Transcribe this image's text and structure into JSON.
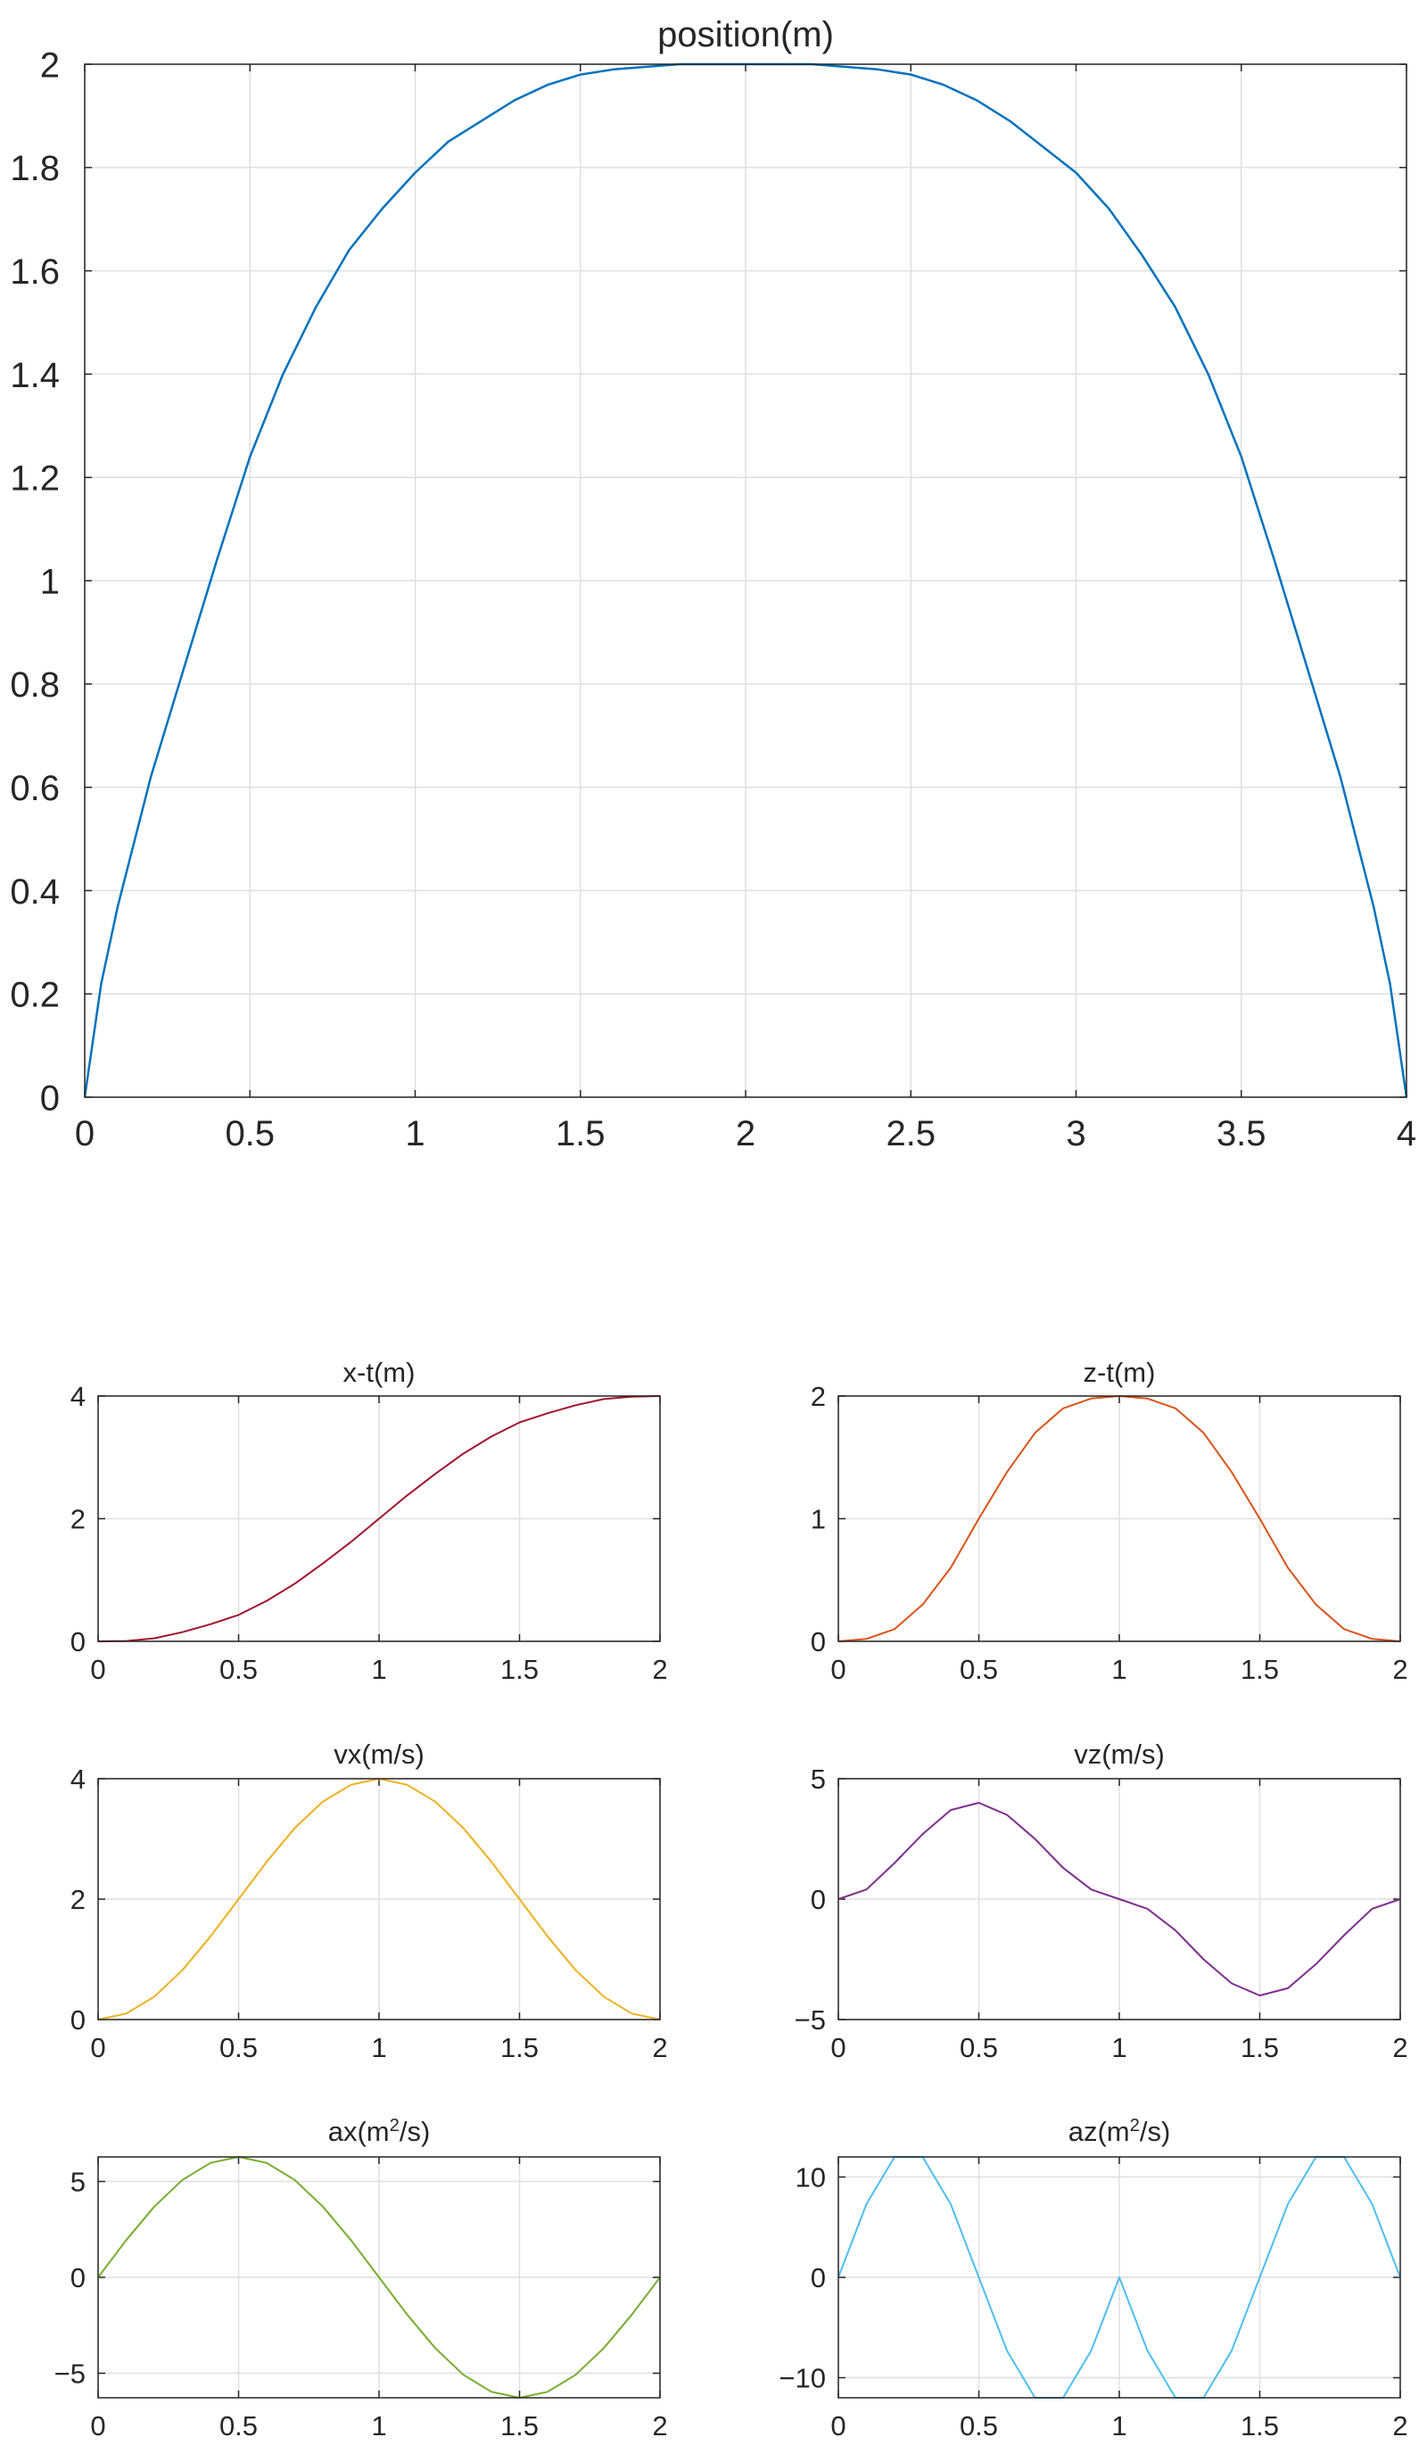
{
  "chart_data": [
    {
      "type": "line",
      "title": "position(m)",
      "xlim": [
        0,
        4
      ],
      "ylim": [
        0,
        2
      ],
      "xticks": [
        "0",
        "0.5",
        "1",
        "1.5",
        "2",
        "2.5",
        "3",
        "3.5",
        "4"
      ],
      "yticks": [
        "0",
        "0.2",
        "0.4",
        "0.6",
        "0.8",
        "1",
        "1.2",
        "1.4",
        "1.6",
        "1.8",
        "2"
      ],
      "grid": true,
      "series": [
        {
          "color": "#0072BD",
          "x": [
            0,
            0.05,
            0.1,
            0.2,
            0.3,
            0.4,
            0.5,
            0.6,
            0.7,
            0.8,
            0.9,
            1.0,
            1.1,
            1.2,
            1.3,
            1.4,
            1.5,
            1.6,
            1.7,
            1.8,
            1.9,
            2.0,
            2.1,
            2.2,
            2.3,
            2.4,
            2.5,
            2.6,
            2.7,
            2.8,
            2.9,
            3.0,
            3.1,
            3.2,
            3.3,
            3.4,
            3.5,
            3.6,
            3.7,
            3.8,
            3.9,
            3.95,
            4.0
          ],
          "y": [
            0,
            0.22,
            0.37,
            0.62,
            0.83,
            1.04,
            1.24,
            1.4,
            1.53,
            1.64,
            1.72,
            1.79,
            1.85,
            1.89,
            1.93,
            1.96,
            1.98,
            1.99,
            1.995,
            2.0,
            2.0,
            2.0,
            2.0,
            2.0,
            1.995,
            1.99,
            1.98,
            1.96,
            1.93,
            1.89,
            1.84,
            1.79,
            1.72,
            1.63,
            1.53,
            1.4,
            1.24,
            1.04,
            0.83,
            0.62,
            0.37,
            0.22,
            0
          ]
        }
      ]
    },
    {
      "type": "line",
      "title": "x-t(m)",
      "xlim": [
        0,
        2
      ],
      "ylim": [
        0,
        4
      ],
      "xticks": [
        "0",
        "0.5",
        "1",
        "1.5",
        "2"
      ],
      "yticks": [
        "0",
        "2",
        "4"
      ],
      "grid": true,
      "series": [
        {
          "color": "#A2142F",
          "x": [
            0,
            0.1,
            0.2,
            0.3,
            0.4,
            0.5,
            0.6,
            0.7,
            0.8,
            0.9,
            1.0,
            1.1,
            1.2,
            1.3,
            1.4,
            1.5,
            1.6,
            1.7,
            1.8,
            1.9,
            2.0
          ],
          "y": [
            0,
            0.006,
            0.05,
            0.15,
            0.28,
            0.43,
            0.66,
            0.94,
            1.27,
            1.62,
            2.0,
            2.38,
            2.73,
            3.06,
            3.34,
            3.57,
            3.72,
            3.85,
            3.95,
            3.99,
            4.0
          ]
        }
      ]
    },
    {
      "type": "line",
      "title": "z-t(m)",
      "xlim": [
        0,
        2
      ],
      "ylim": [
        0,
        2
      ],
      "xticks": [
        "0",
        "0.5",
        "1",
        "1.5",
        "2"
      ],
      "yticks": [
        "0",
        "1",
        "2"
      ],
      "grid": true,
      "series": [
        {
          "color": "#D95319",
          "x": [
            0,
            0.1,
            0.2,
            0.3,
            0.4,
            0.5,
            0.6,
            0.7,
            0.8,
            0.9,
            1.0,
            1.1,
            1.2,
            1.3,
            1.4,
            1.5,
            1.6,
            1.7,
            1.8,
            1.9,
            2.0
          ],
          "y": [
            0,
            0.02,
            0.1,
            0.3,
            0.6,
            1.0,
            1.38,
            1.7,
            1.9,
            1.98,
            2.0,
            1.98,
            1.9,
            1.7,
            1.38,
            1.0,
            0.6,
            0.3,
            0.1,
            0.02,
            0
          ]
        }
      ]
    },
    {
      "type": "line",
      "title": "vx(m/s)",
      "xlim": [
        0,
        2
      ],
      "ylim": [
        0,
        4
      ],
      "xticks": [
        "0",
        "0.5",
        "1",
        "1.5",
        "2"
      ],
      "yticks": [
        "0",
        "2",
        "4"
      ],
      "grid": true,
      "series": [
        {
          "color": "#EDB120",
          "x": [
            0,
            0.1,
            0.2,
            0.3,
            0.4,
            0.5,
            0.6,
            0.7,
            0.8,
            0.9,
            1.0,
            1.1,
            1.2,
            1.3,
            1.4,
            1.5,
            1.6,
            1.7,
            1.8,
            1.9,
            2.0
          ],
          "y": [
            0,
            0.1,
            0.38,
            0.82,
            1.38,
            2.0,
            2.62,
            3.18,
            3.62,
            3.9,
            4.0,
            3.9,
            3.62,
            3.18,
            2.62,
            2.0,
            1.38,
            0.82,
            0.38,
            0.1,
            0
          ]
        }
      ]
    },
    {
      "type": "line",
      "title": "vz(m/s)",
      "xlim": [
        0,
        2
      ],
      "ylim": [
        -5,
        5
      ],
      "xticks": [
        "0",
        "0.5",
        "1",
        "1.5",
        "2"
      ],
      "yticks": [
        "−5",
        "0",
        "5"
      ],
      "ytick_values": [
        -5,
        0,
        5
      ],
      "grid": true,
      "series": [
        {
          "color": "#7E2F8E",
          "x": [
            0,
            0.1,
            0.2,
            0.3,
            0.4,
            0.5,
            0.6,
            0.7,
            0.8,
            0.9,
            1.0,
            1.1,
            1.2,
            1.3,
            1.4,
            1.5,
            1.6,
            1.7,
            1.8,
            1.9,
            2.0
          ],
          "y": [
            0,
            0.4,
            1.5,
            2.7,
            3.7,
            4.0,
            3.5,
            2.5,
            1.3,
            0.4,
            0.0,
            -0.4,
            -1.3,
            -2.5,
            -3.5,
            -4.0,
            -3.7,
            -2.7,
            -1.5,
            -0.4,
            0
          ]
        }
      ]
    },
    {
      "type": "line",
      "title": "ax(m²/s)",
      "title_base": "ax(m",
      "title_sup": "2",
      "title_tail": "/s)",
      "xlim": [
        0,
        2
      ],
      "ylim": [
        -6.28,
        6.28
      ],
      "xticks": [
        "0",
        "0.5",
        "1",
        "1.5",
        "2"
      ],
      "yticks": [
        "−5",
        "0",
        "5"
      ],
      "ytick_values": [
        -5,
        0,
        5
      ],
      "grid": true,
      "series": [
        {
          "color": "#77AC30",
          "x": [
            0,
            0.1,
            0.2,
            0.3,
            0.4,
            0.5,
            0.6,
            0.7,
            0.8,
            0.9,
            1.0,
            1.1,
            1.2,
            1.3,
            1.4,
            1.5,
            1.6,
            1.7,
            1.8,
            1.9,
            2.0
          ],
          "y": [
            0,
            1.94,
            3.69,
            5.08,
            5.97,
            6.28,
            5.97,
            5.08,
            3.69,
            1.94,
            0,
            -1.94,
            -3.69,
            -5.08,
            -5.97,
            -6.28,
            -5.97,
            -5.08,
            -3.69,
            -1.94,
            0
          ]
        }
      ]
    },
    {
      "type": "line",
      "title": "az(m²/s)",
      "title_base": "az(m",
      "title_sup": "2",
      "title_tail": "/s)",
      "xlim": [
        0,
        2
      ],
      "ylim": [
        -12,
        12
      ],
      "xticks": [
        "0",
        "0.5",
        "1",
        "1.5",
        "2"
      ],
      "yticks": [
        "−10",
        "0",
        "10"
      ],
      "ytick_values": [
        -10,
        0,
        10
      ],
      "grid": true,
      "series": [
        {
          "color": "#4DBEEE",
          "x": [
            0,
            0.1,
            0.2,
            0.3,
            0.4,
            0.5,
            0.6,
            0.7,
            0.8,
            0.9,
            1.0,
            1.1,
            1.2,
            1.3,
            1.4,
            1.5,
            1.6,
            1.7,
            1.8,
            1.9,
            2.0
          ],
          "y": [
            0,
            7.3,
            12,
            12,
            7.3,
            0,
            -7.3,
            -12,
            -12,
            -7.3,
            0,
            -7.3,
            -12,
            -12,
            -7.3,
            0,
            7.3,
            12,
            12,
            7.3,
            0
          ]
        }
      ]
    }
  ]
}
